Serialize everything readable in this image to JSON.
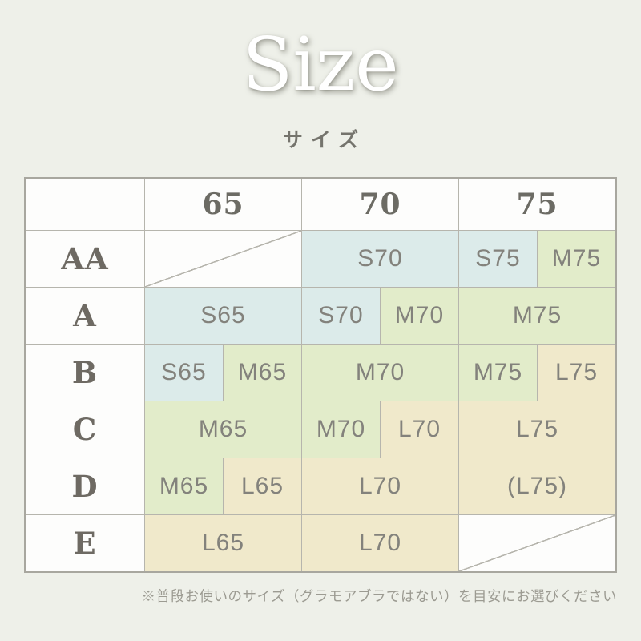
{
  "page": {
    "background": "#eef0e9"
  },
  "title": {
    "text": "Size",
    "color": "#ffffff"
  },
  "subtitle": {
    "text": "サイズ",
    "color": "#75746d"
  },
  "chart_data": {
    "type": "table",
    "title": "Size",
    "subtitle": "サイズ",
    "description": "Bra size conversion chart: rows are cup sizes, columns are underband sizes, cells give the recommended product size (S/M/L + band).",
    "column_headers": [
      "65",
      "70",
      "75"
    ],
    "row_headers": [
      "AA",
      "A",
      "B",
      "C",
      "D",
      "E"
    ],
    "rows": [
      {
        "label": "AA",
        "cells": [
          {
            "text": "",
            "band": "none",
            "span": "col-65",
            "diagonal": true
          },
          {
            "text": "S70",
            "band": "S",
            "span": "col-70"
          },
          {
            "text": "S75",
            "band": "S",
            "span": "col-75-left"
          },
          {
            "text": "M75",
            "band": "M",
            "span": "col-75-right"
          }
        ]
      },
      {
        "label": "A",
        "cells": [
          {
            "text": "S65",
            "band": "S",
            "span": "col-65"
          },
          {
            "text": "S70",
            "band": "S",
            "span": "col-70-left"
          },
          {
            "text": "M70",
            "band": "M",
            "span": "col-70-right"
          },
          {
            "text": "M75",
            "band": "M",
            "span": "col-75"
          }
        ]
      },
      {
        "label": "B",
        "cells": [
          {
            "text": "S65",
            "band": "S",
            "span": "col-65-left"
          },
          {
            "text": "M65",
            "band": "M",
            "span": "col-65-right"
          },
          {
            "text": "M70",
            "band": "M",
            "span": "col-70"
          },
          {
            "text": "M75",
            "band": "M",
            "span": "col-75-left"
          },
          {
            "text": "L75",
            "band": "L",
            "span": "col-75-right"
          }
        ]
      },
      {
        "label": "C",
        "cells": [
          {
            "text": "M65",
            "band": "M",
            "span": "col-65"
          },
          {
            "text": "M70",
            "band": "M",
            "span": "col-70-left"
          },
          {
            "text": "L70",
            "band": "L",
            "span": "col-70-right"
          },
          {
            "text": "L75",
            "band": "L",
            "span": "col-75"
          }
        ]
      },
      {
        "label": "D",
        "cells": [
          {
            "text": "M65",
            "band": "M",
            "span": "col-65-left"
          },
          {
            "text": "L65",
            "band": "L",
            "span": "col-65-right"
          },
          {
            "text": "L70",
            "band": "L",
            "span": "col-70"
          },
          {
            "text": "(L75)",
            "band": "L",
            "span": "col-75"
          }
        ]
      },
      {
        "label": "E",
        "cells": [
          {
            "text": "L65",
            "band": "L",
            "span": "col-65"
          },
          {
            "text": "L70",
            "band": "L",
            "span": "col-70"
          },
          {
            "text": "",
            "band": "none",
            "span": "col-75",
            "diagonal": true
          }
        ]
      }
    ],
    "band_colors": {
      "S": "#dcebea",
      "M": "#e2ecca",
      "L": "#f0e9cb"
    },
    "empty_cell_color": "#fdfdfc",
    "grid_line_color": "#b6b5ad",
    "footnote": "※普段お使いのサイズ（グラモアブラではない）を目安にお選びください"
  },
  "footer": {
    "note": "※普段お使いのサイズ（グラモアブラではない）を目安にお選びください"
  }
}
